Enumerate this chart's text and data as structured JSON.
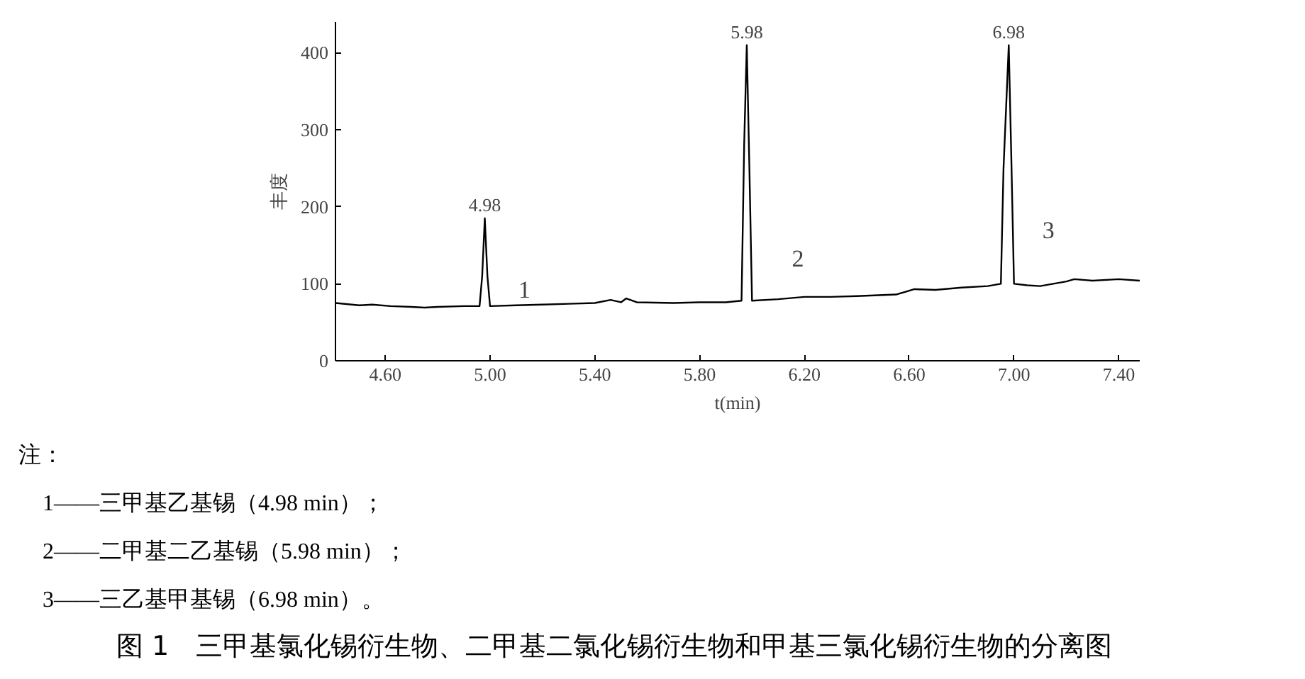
{
  "chart_data": {
    "type": "line",
    "title": "图 1　三甲基氯化锡衍生物、二甲基二氯化锡衍生物和甲基三氯化锡衍生物的分离图",
    "xlabel": "t(min)",
    "ylabel": "丰度",
    "x": [
      4.41,
      4.5,
      4.55,
      4.62,
      4.7,
      4.75,
      4.8,
      4.9,
      4.96,
      4.97,
      4.98,
      4.99,
      5.0,
      5.1,
      5.2,
      5.3,
      5.4,
      5.46,
      5.5,
      5.52,
      5.56,
      5.7,
      5.8,
      5.9,
      5.96,
      5.97,
      5.98,
      5.99,
      6.0,
      6.1,
      6.2,
      6.3,
      6.4,
      6.55,
      6.62,
      6.7,
      6.8,
      6.9,
      6.95,
      6.96,
      6.98,
      6.99,
      7.0,
      7.05,
      7.1,
      7.2,
      7.23,
      7.3,
      7.4,
      7.48
    ],
    "series": [
      {
        "color": "#000000",
        "values": [
          75,
          72,
          73,
          71,
          70,
          69,
          70,
          71,
          71,
          110,
          185,
          110,
          71,
          72,
          73,
          74,
          75,
          79,
          76,
          81,
          76,
          75,
          76,
          76,
          78,
          280,
          410,
          250,
          78,
          80,
          83,
          83,
          84,
          86,
          93,
          92,
          95,
          97,
          100,
          250,
          410,
          260,
          100,
          98,
          97,
          103,
          106,
          104,
          106,
          104
        ]
      }
    ],
    "xlim": [
      4.41,
      7.48
    ],
    "ylim": [
      0,
      440
    ],
    "xticks": [
      {
        "value": 4.6,
        "label": "4.60"
      },
      {
        "value": 5.0,
        "label": "5.00"
      },
      {
        "value": 5.4,
        "label": "5.40"
      },
      {
        "value": 5.8,
        "label": "5.80"
      },
      {
        "value": 6.2,
        "label": "6.20"
      },
      {
        "value": 6.6,
        "label": "6.60"
      },
      {
        "value": 7.0,
        "label": "7.00"
      },
      {
        "value": 7.4,
        "label": "7.40"
      }
    ],
    "yticks": [
      0,
      100,
      200,
      300,
      400
    ],
    "grid": false,
    "marker": "none",
    "line_style": "solid",
    "annotations": [
      {
        "text": "4.98",
        "x": 4.98,
        "y": 185
      },
      {
        "text": "5.98",
        "x": 5.98,
        "y": 410
      },
      {
        "text": "6.98",
        "x": 6.98,
        "y": 410
      },
      "1",
      "2",
      "3",
      "注：",
      "1——三甲基乙基锡（4.98 min）；",
      "2——二甲基二乙基锡（5.98 min）；",
      "3——三乙基甲基锡（6.98 min）。"
    ]
  }
}
